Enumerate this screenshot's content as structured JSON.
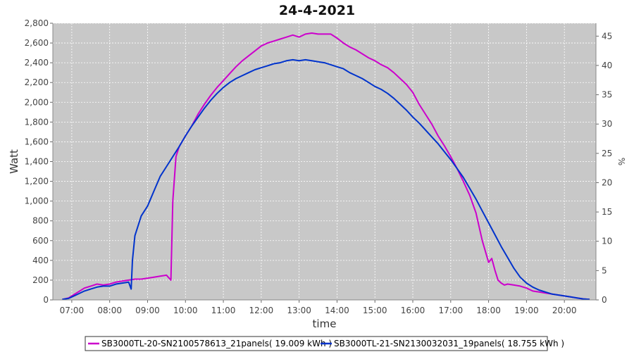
{
  "chart_data": {
    "type": "line",
    "title": "24-4-2021",
    "xlabel": "time",
    "ylabel": "Watt",
    "y2label": "%",
    "xlim": [
      "06:30",
      "20:50"
    ],
    "ylim": [
      0,
      2800
    ],
    "y2lim": [
      0,
      47.2
    ],
    "x_ticks": [
      "07:00",
      "08:00",
      "09:00",
      "10:00",
      "11:00",
      "12:00",
      "13:00",
      "14:00",
      "15:00",
      "16:00",
      "17:00",
      "18:00",
      "19:00",
      "20:00"
    ],
    "y_ticks": [
      0,
      200,
      400,
      600,
      800,
      1000,
      1200,
      1400,
      1600,
      1800,
      2000,
      2200,
      2400,
      2600,
      2800
    ],
    "y_tick_labels": [
      "0",
      "200",
      "400",
      "600",
      "800",
      "1,000",
      "1,200",
      "1,400",
      "1,600",
      "1,800",
      "2,000",
      "2,200",
      "2,400",
      "2,600",
      "2,800"
    ],
    "y2_ticks": [
      0,
      5,
      10,
      15,
      20,
      25,
      30,
      35,
      40,
      45
    ],
    "grid": true,
    "legend_position": "bottom",
    "series": [
      {
        "name": "SB3000TL-20-SN2100578613_21panels( 19.009 kWh )",
        "color": "#cc00cc",
        "x": [
          "06:45",
          "06:55",
          "07:00",
          "07:10",
          "07:20",
          "07:30",
          "07:40",
          "07:50",
          "08:00",
          "08:10",
          "08:20",
          "08:30",
          "08:40",
          "08:50",
          "09:00",
          "09:10",
          "09:20",
          "09:30",
          "09:37",
          "09:40",
          "09:45",
          "09:50",
          "10:00",
          "10:10",
          "10:20",
          "10:30",
          "10:40",
          "10:50",
          "11:00",
          "11:10",
          "11:20",
          "11:30",
          "11:40",
          "11:50",
          "12:00",
          "12:10",
          "12:20",
          "12:30",
          "12:40",
          "12:50",
          "13:00",
          "13:10",
          "13:20",
          "13:30",
          "13:40",
          "13:50",
          "14:00",
          "14:10",
          "14:20",
          "14:30",
          "14:40",
          "14:50",
          "15:00",
          "15:10",
          "15:20",
          "15:30",
          "15:40",
          "15:50",
          "16:00",
          "16:10",
          "16:20",
          "16:30",
          "16:40",
          "16:50",
          "17:00",
          "17:10",
          "17:20",
          "17:30",
          "17:40",
          "17:50",
          "18:00",
          "18:05",
          "18:10",
          "18:15",
          "18:20",
          "18:25",
          "18:30",
          "18:40",
          "18:50",
          "19:00",
          "19:10",
          "19:20",
          "19:30",
          "19:40",
          "19:50",
          "20:00",
          "20:10",
          "20:20",
          "20:30",
          "20:40"
        ],
        "values": [
          5,
          20,
          40,
          80,
          120,
          140,
          160,
          150,
          160,
          180,
          190,
          200,
          210,
          210,
          220,
          230,
          240,
          250,
          200,
          1000,
          1450,
          1550,
          1660,
          1760,
          1880,
          1980,
          2070,
          2150,
          2220,
          2290,
          2360,
          2420,
          2470,
          2520,
          2570,
          2600,
          2620,
          2640,
          2660,
          2680,
          2660,
          2690,
          2700,
          2690,
          2690,
          2690,
          2650,
          2600,
          2560,
          2530,
          2490,
          2450,
          2420,
          2380,
          2350,
          2300,
          2240,
          2180,
          2100,
          1980,
          1880,
          1780,
          1660,
          1560,
          1450,
          1330,
          1200,
          1060,
          880,
          600,
          380,
          420,
          300,
          200,
          170,
          150,
          160,
          150,
          140,
          120,
          90,
          80,
          70,
          60,
          50,
          40,
          30,
          20,
          10,
          5
        ]
      },
      {
        "name": "SB3000TL-21-SN2130032031_19panels( 18.755 kWh )",
        "color": "#0033cc",
        "x": [
          "06:45",
          "06:55",
          "07:00",
          "07:10",
          "07:20",
          "07:30",
          "07:40",
          "07:50",
          "08:00",
          "08:10",
          "08:20",
          "08:30",
          "08:34",
          "08:36",
          "08:40",
          "08:50",
          "09:00",
          "09:10",
          "09:20",
          "09:30",
          "09:40",
          "09:50",
          "10:00",
          "10:10",
          "10:20",
          "10:30",
          "10:40",
          "10:50",
          "11:00",
          "11:10",
          "11:20",
          "11:30",
          "11:40",
          "11:50",
          "12:00",
          "12:10",
          "12:20",
          "12:30",
          "12:40",
          "12:50",
          "13:00",
          "13:10",
          "13:20",
          "13:30",
          "13:40",
          "13:50",
          "14:00",
          "14:10",
          "14:20",
          "14:30",
          "14:40",
          "14:50",
          "15:00",
          "15:10",
          "15:20",
          "15:30",
          "15:40",
          "15:50",
          "16:00",
          "16:10",
          "16:20",
          "16:30",
          "16:40",
          "16:50",
          "17:00",
          "17:10",
          "17:20",
          "17:30",
          "17:40",
          "17:50",
          "18:00",
          "18:10",
          "18:20",
          "18:30",
          "18:40",
          "18:50",
          "19:00",
          "19:10",
          "19:20",
          "19:30",
          "19:40",
          "19:50",
          "20:00",
          "20:10",
          "20:20",
          "20:30",
          "20:40"
        ],
        "values": [
          5,
          15,
          30,
          60,
          90,
          110,
          130,
          140,
          140,
          160,
          170,
          180,
          110,
          400,
          650,
          850,
          950,
          1100,
          1250,
          1350,
          1450,
          1550,
          1660,
          1760,
          1850,
          1940,
          2020,
          2090,
          2150,
          2200,
          2240,
          2270,
          2300,
          2330,
          2350,
          2370,
          2390,
          2400,
          2420,
          2430,
          2420,
          2430,
          2420,
          2410,
          2400,
          2380,
          2360,
          2340,
          2300,
          2270,
          2240,
          2200,
          2160,
          2130,
          2090,
          2040,
          1980,
          1920,
          1850,
          1790,
          1720,
          1650,
          1580,
          1500,
          1420,
          1330,
          1240,
          1130,
          1020,
          900,
          780,
          660,
          540,
          430,
          320,
          230,
          170,
          130,
          100,
          80,
          60,
          50,
          40,
          30,
          20,
          10,
          5
        ]
      }
    ]
  }
}
